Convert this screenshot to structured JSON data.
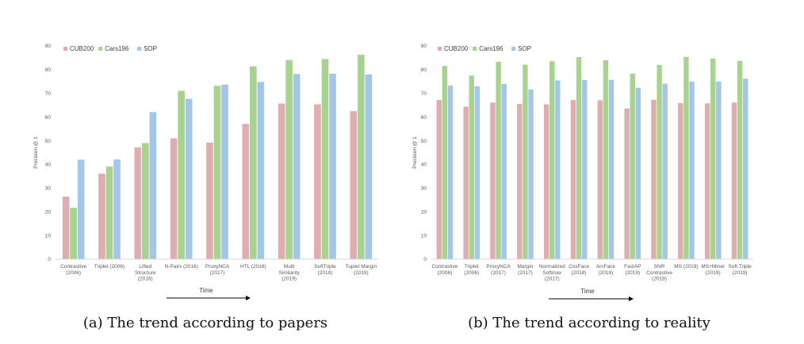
{
  "colors": {
    "CUB200": "#ddadaf",
    "Cars196": "#a7d38e",
    "SOP": "#a4c6e8",
    "axis": "#d9d9d9",
    "text": "#595959"
  },
  "chart_data": [
    {
      "type": "bar",
      "caption": "(a) The trend according to papers",
      "ylabel": "Precision @ 1",
      "xlabel": "Time",
      "ylim": [
        0,
        90
      ],
      "yticks": [
        0,
        10,
        20,
        30,
        40,
        50,
        60,
        70,
        80,
        90
      ],
      "legend": "top-left",
      "categories": [
        [
          "Contrastive",
          "(2006)"
        ],
        [
          "Triplet (2006)"
        ],
        [
          "Lifted",
          "Structure",
          "(2016)"
        ],
        [
          "N-Pairs (2016)"
        ],
        [
          "ProxyNCA",
          "(2017)"
        ],
        [
          "HTL (2018)"
        ],
        [
          "Multi",
          "Similarity",
          "(2019)"
        ],
        [
          "SoftTriple",
          "(2019)"
        ],
        [
          "Tuplet Margin",
          "(2019)"
        ]
      ],
      "series": [
        {
          "name": "CUB200",
          "values": [
            26.4,
            36.1,
            47.2,
            51.0,
            49.2,
            57.1,
            65.7,
            65.4,
            62.5
          ]
        },
        {
          "name": "Cars196",
          "values": [
            21.7,
            39.1,
            49.0,
            71.1,
            73.2,
            81.4,
            84.1,
            84.5,
            86.3
          ]
        },
        {
          "name": "SOP",
          "values": [
            42.0,
            42.1,
            62.1,
            67.7,
            73.7,
            74.8,
            78.2,
            78.3,
            78.0
          ]
        }
      ]
    },
    {
      "type": "bar",
      "caption": "(b) The trend according to reality",
      "ylabel": "Precision @ 1",
      "xlabel": "Time",
      "ylim": [
        0,
        90
      ],
      "yticks": [
        0,
        10,
        20,
        30,
        40,
        50,
        60,
        70,
        80,
        90
      ],
      "legend": "top-left",
      "categories": [
        [
          "Contrastive",
          "(2006)"
        ],
        [
          "Triplet",
          "(2006)"
        ],
        [
          "ProxyNCA",
          "(2017)"
        ],
        [
          "Margin",
          "(2017)"
        ],
        [
          "Normalized",
          "Softmax",
          "(2017)"
        ],
        [
          "CosFace",
          "(2018)"
        ],
        [
          "ArcFace",
          "(2019)"
        ],
        [
          "FastAP",
          "(2019)"
        ],
        [
          "SNR",
          "Contrastive",
          "(2019)"
        ],
        [
          "MS (2019)"
        ],
        [
          "MS+Miner",
          "(2019)"
        ],
        [
          "Soft Triple",
          "(2019)"
        ]
      ],
      "series": [
        {
          "name": "CUB200",
          "values": [
            67.2,
            64.4,
            66.1,
            65.5,
            65.4,
            67.2,
            67.1,
            63.6,
            67.3,
            65.9,
            65.8,
            66.1
          ]
        },
        {
          "name": "Cars196",
          "values": [
            81.6,
            77.5,
            83.3,
            82.1,
            83.6,
            85.3,
            84.0,
            78.3,
            82.0,
            85.4,
            84.7,
            83.7
          ]
        },
        {
          "name": "SOP",
          "values": [
            73.3,
            73.0,
            74.0,
            71.6,
            75.5,
            75.6,
            75.7,
            72.4,
            74.1,
            75.0,
            75.0,
            76.2
          ]
        }
      ]
    }
  ]
}
